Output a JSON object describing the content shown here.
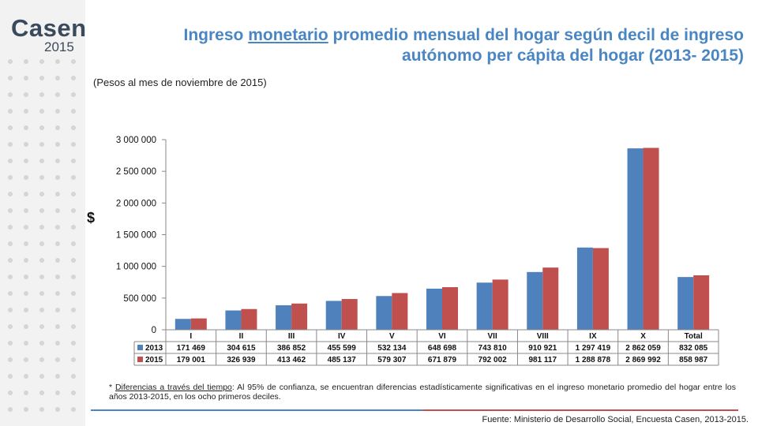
{
  "logo": {
    "word": "Casen",
    "year": "2015"
  },
  "header": {
    "title_pre": "Ingreso ",
    "title_underlined": "monetario",
    "title_post": " promedio mensual del hogar según decil de ingreso autónomo per cápita del hogar (2013- 2015)",
    "subtitle": "(Pesos al mes de noviembre de 2015)"
  },
  "note": {
    "star": "* ",
    "underlined": "Diferencias a través del tiempo",
    "text": ": Al 95% de confianza, se encuentran diferencias estadísticamente significativas en el ingreso monetario promedio del hogar entre los años 2013-2015, en los ocho primeros deciles."
  },
  "source": "Fuente: Ministerio de Desarrollo Social, Encuesta Casen, 2013-2015.",
  "colors": {
    "title": "#4a86c4",
    "series_2013": "#4f81bd",
    "series_2015": "#c0504d"
  },
  "chart_data": {
    "type": "bar",
    "ylabel": "$",
    "ylim": [
      0,
      3000000
    ],
    "yticks": [
      0,
      500000,
      1000000,
      1500000,
      2000000,
      2500000,
      3000000
    ],
    "ytick_labels": [
      "0",
      "500 000",
      "1 000 000",
      "1 500 000",
      "2 000 000",
      "2 500 000",
      "3 000 000"
    ],
    "categories": [
      "I",
      "II",
      "III",
      "IV",
      "V",
      "VI",
      "VII",
      "VIII",
      "IX",
      "X",
      "Total"
    ],
    "series": [
      {
        "name": "2013",
        "color": "#4f81bd",
        "values": [
          171469,
          304615,
          386852,
          455599,
          532134,
          648698,
          743810,
          910921,
          1297419,
          2862059,
          832085
        ],
        "labels": [
          "171 469",
          "304 615",
          "386 852",
          "455 599",
          "532 134",
          "648 698",
          "743 810",
          "910 921",
          "1 297 419",
          "2 862 059",
          "832 085"
        ]
      },
      {
        "name": "2015",
        "color": "#c0504d",
        "values": [
          179001,
          326939,
          413462,
          485137,
          579307,
          671879,
          792002,
          981117,
          1288878,
          2869992,
          858987
        ],
        "labels": [
          "179 001",
          "326 939",
          "413 462",
          "485 137",
          "579 307",
          "671 879",
          "792 002",
          "981 117",
          "1 288 878",
          "2 869 992",
          "858 987"
        ]
      }
    ],
    "grid": false,
    "legend": "in data table"
  }
}
